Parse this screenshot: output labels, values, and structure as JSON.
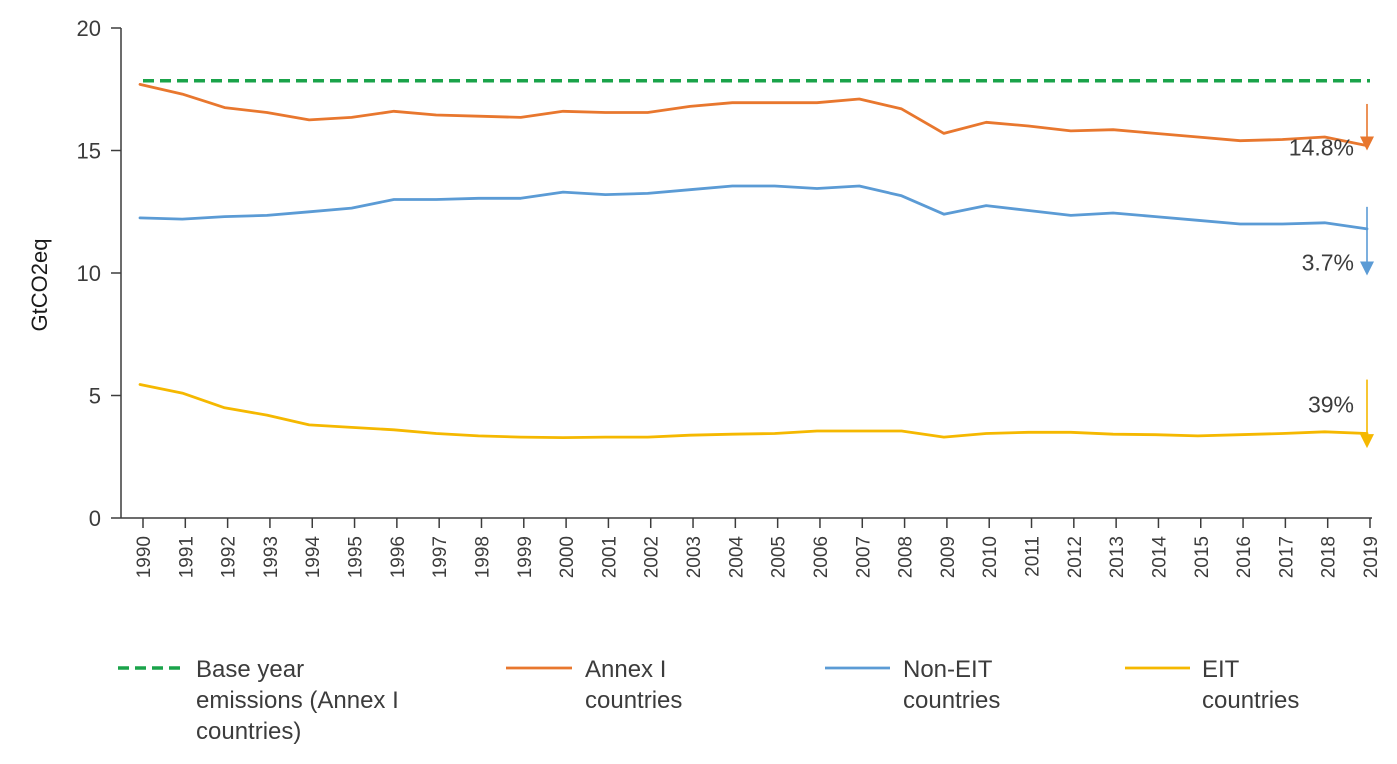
{
  "chart_data": {
    "type": "line",
    "title": "",
    "xlabel": "",
    "ylabel": "GtCO2eq",
    "ylim": [
      0,
      20
    ],
    "yticks": [
      0,
      5,
      10,
      15,
      20
    ],
    "x": [
      "1990",
      "1991",
      "1992",
      "1993",
      "1994",
      "1995",
      "1996",
      "1997",
      "1998",
      "1999",
      "2000",
      "2001",
      "2002",
      "2003",
      "2004",
      "2005",
      "2006",
      "2007",
      "2008",
      "2009",
      "2010",
      "2011",
      "2012",
      "2013",
      "2014",
      "2015",
      "2016",
      "2017",
      "2018",
      "2019"
    ],
    "grid": false,
    "legend_position": "bottom",
    "series": [
      {
        "name": "Base year emissions (Annex I countries)",
        "legend_lines": [
          "Base year",
          "emissions (Annex I",
          "countries)"
        ],
        "color": "#1aa34a",
        "dashed": true,
        "values": [
          17.85,
          17.85,
          17.85,
          17.85,
          17.85,
          17.85,
          17.85,
          17.85,
          17.85,
          17.85,
          17.85,
          17.85,
          17.85,
          17.85,
          17.85,
          17.85,
          17.85,
          17.85,
          17.85,
          17.85,
          17.85,
          17.85,
          17.85,
          17.85,
          17.85,
          17.85,
          17.85,
          17.85,
          17.85,
          17.85
        ]
      },
      {
        "name": "Annex I countries",
        "legend_lines": [
          "Annex I",
          "countries"
        ],
        "color": "#e8772e",
        "dashed": false,
        "values": [
          17.7,
          17.3,
          16.75,
          16.55,
          16.25,
          16.35,
          16.6,
          16.45,
          16.4,
          16.35,
          16.6,
          16.55,
          16.55,
          16.8,
          16.95,
          16.95,
          16.95,
          17.1,
          16.7,
          15.7,
          16.15,
          16.0,
          15.8,
          15.85,
          15.7,
          15.55,
          15.4,
          15.45,
          15.55,
          15.2
        ]
      },
      {
        "name": "Non-EIT countries",
        "legend_lines": [
          "Non-EIT",
          "countries"
        ],
        "color": "#5b9bd5",
        "dashed": false,
        "values": [
          12.25,
          12.2,
          12.3,
          12.35,
          12.5,
          12.65,
          13.0,
          13.0,
          13.05,
          13.05,
          13.3,
          13.2,
          13.25,
          13.4,
          13.55,
          13.55,
          13.45,
          13.55,
          13.15,
          12.4,
          12.75,
          12.55,
          12.35,
          12.45,
          12.3,
          12.15,
          12.0,
          12.0,
          12.05,
          11.8
        ]
      },
      {
        "name": "EIT countries",
        "legend_lines": [
          "EIT",
          "countries"
        ],
        "color": "#f5b800",
        "dashed": false,
        "values": [
          5.45,
          5.1,
          4.5,
          4.2,
          3.8,
          3.7,
          3.6,
          3.45,
          3.35,
          3.3,
          3.28,
          3.3,
          3.3,
          3.38,
          3.42,
          3.45,
          3.55,
          3.55,
          3.55,
          3.3,
          3.45,
          3.5,
          3.5,
          3.42,
          3.4,
          3.35,
          3.4,
          3.45,
          3.52,
          3.45
        ]
      }
    ],
    "annotations": [
      {
        "text": "14.8%",
        "series": "Annex I countries",
        "arrow": "down",
        "color": "#e8772e"
      },
      {
        "text": "3.7%",
        "series": "Non-EIT countries",
        "arrow": "down",
        "color": "#5b9bd5"
      },
      {
        "text": "39%",
        "series": "EIT countries",
        "arrow": "down",
        "color": "#f5b800"
      }
    ]
  }
}
